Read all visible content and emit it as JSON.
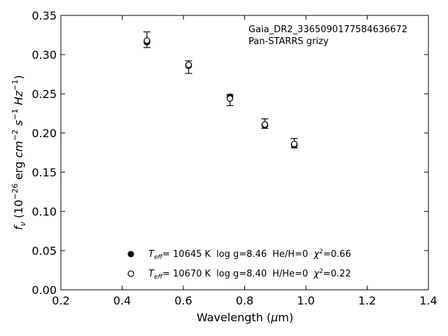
{
  "chart_data": {
    "type": "scatter",
    "xlabel": "Wavelength (μm)",
    "ylabel": "f_ν (10^-26 erg cm^-2 s^-1 Hz^-1)",
    "xlim": [
      0.2,
      1.4
    ],
    "ylim": [
      0.0,
      0.35
    ],
    "xticks": [
      "0.2",
      "0.4",
      "0.6",
      "0.8",
      "1.0",
      "1.2",
      "1.4"
    ],
    "yticks": [
      "0.00",
      "0.05",
      "0.10",
      "0.15",
      "0.20",
      "0.25",
      "0.30",
      "0.35"
    ],
    "grid": false,
    "annotation": [
      "Gaia_DR2_3365090177584636672",
      "Pan-STARRS grizy"
    ],
    "observed": {
      "x": [
        0.481,
        0.617,
        0.752,
        0.866,
        0.962
      ],
      "y": [
        0.319,
        0.284,
        0.242,
        0.212,
        0.187
      ],
      "yerr": [
        0.01,
        0.008,
        0.007,
        0.006,
        0.006
      ]
    },
    "series": [
      {
        "name": "T_eff= 10645 K  log g=8.46  He/H=0  χ²=0.66",
        "marker": "filled",
        "x": [
          0.481,
          0.617,
          0.752,
          0.866,
          0.962
        ],
        "y": [
          0.316,
          0.286,
          0.246,
          0.21,
          0.185
        ]
      },
      {
        "name": "T_eff= 10670 K  log g=8.40  H/He=0  χ²=0.22",
        "marker": "open",
        "x": [
          0.481,
          0.617,
          0.752,
          0.866,
          0.962
        ],
        "y": [
          0.318,
          0.287,
          0.244,
          0.211,
          0.186
        ]
      }
    ],
    "legend": {
      "placement": "lower-center",
      "entries": [
        {
          "temp": "= 10645 K",
          "logg": "log g=8.46",
          "comp": "He/H=0",
          "chi": "=0.66"
        },
        {
          "temp": "= 10670 K",
          "logg": "log g=8.40",
          "comp": "H/He=0",
          "chi": "=0.22"
        }
      ]
    },
    "colors": {
      "marker": "#000000",
      "axis": "#000000"
    }
  }
}
